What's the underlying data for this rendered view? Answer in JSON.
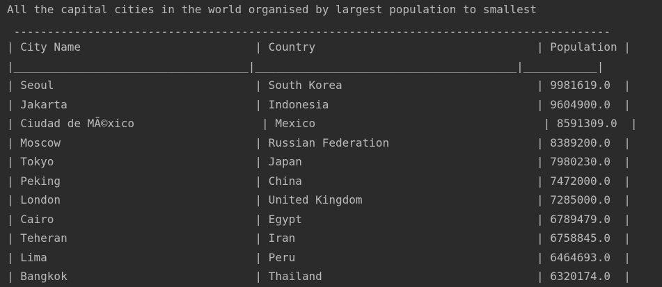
{
  "console": {
    "heading": "All the capital cities in the world organised by largest population to smallest",
    "top_border": " -----------------------------------------------------------------------------------------",
    "header_row": "| City Name                          | Country                                 | Population |",
    "separator_row": "|___________________________________|_______________________________________|___________|",
    "rows": [
      "| Seoul                              | South Korea                             | 9981619.0  |",
      "| Jakarta                            | Indonesia                               | 9604900.0  |",
      "| Ciudad de MÃ©xico                   | Mexico                                  | 8591309.0  |",
      "| Moscow                             | Russian Federation                      | 8389200.0  |",
      "| Tokyo                              | Japan                                   | 7980230.0  |",
      "| Peking                             | China                                   | 7472000.0  |",
      "| London                             | United Kingdom                          | 7285000.0  |",
      "| Cairo                              | Egypt                                   | 6789479.0  |",
      "| Teheran                            | Iran                                    | 6758845.0  |",
      "| Lima                               | Peru                                    | 6464693.0  |",
      "| Bangkok                            | Thailand                                | 6320174.0  |"
    ]
  }
}
